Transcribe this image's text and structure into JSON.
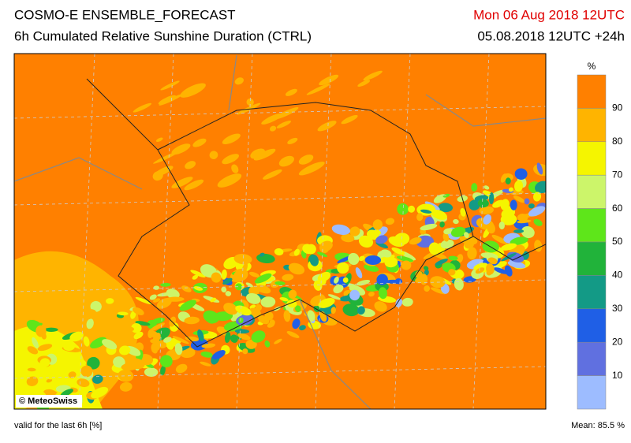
{
  "header": {
    "title": "COSMO-E ENSEMBLE_FORECAST",
    "subtitle": "6h Cumulated Relative Sunshine Duration (CTRL)",
    "valid_date": "Mon 06 Aug 2018 12UTC",
    "run": "05.08.2018 12UTC +24h"
  },
  "map": {
    "copyright": "© MeteoSwiss"
  },
  "legend": {
    "unit": "%",
    "ticks": [
      90,
      80,
      70,
      60,
      50,
      40,
      30,
      20,
      10
    ],
    "colors": [
      "#ff8000",
      "#ffb400",
      "#f5f500",
      "#ccf56a",
      "#5ee61a",
      "#21b33a",
      "#139a86",
      "#1f5fe6",
      "#6070e0",
      "#9dbcff"
    ]
  },
  "footer": {
    "left": "valid for the last 6h [%]",
    "right": "Mean:  85.5 %"
  }
}
